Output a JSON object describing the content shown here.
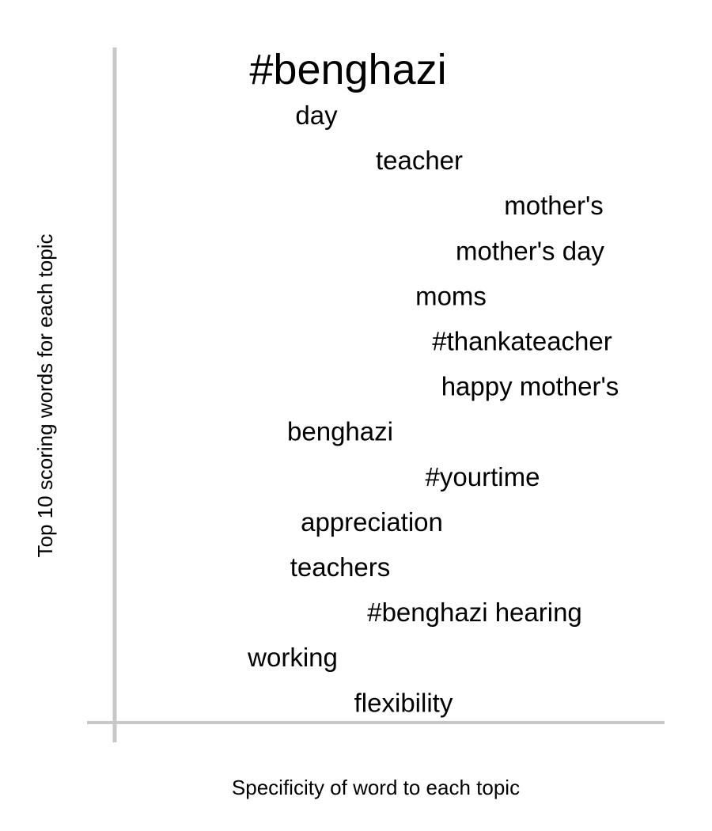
{
  "chart_data": {
    "type": "scatter",
    "title": "",
    "xlabel": "Specificity of word to each topic",
    "ylabel": "Top 10 scoring words for each topic",
    "grid": false,
    "legend": "none",
    "axis_color": "#c8c8c8",
    "text_color": "#000000",
    "points": [
      {
        "word": "#benghazi",
        "x": 0.44,
        "rank": 1,
        "weight": 1.0
      },
      {
        "word": "day",
        "x": 0.4,
        "rank": 2,
        "weight": 0.45
      },
      {
        "word": "teacher",
        "x": 0.53,
        "rank": 3,
        "weight": 0.45
      },
      {
        "word": "mother's",
        "x": 0.7,
        "rank": 4,
        "weight": 0.45
      },
      {
        "word": "mother's day",
        "x": 0.67,
        "rank": 5,
        "weight": 0.45
      },
      {
        "word": "moms",
        "x": 0.57,
        "rank": 6,
        "weight": 0.45
      },
      {
        "word": "#thankateacher",
        "x": 0.66,
        "rank": 7,
        "weight": 0.45
      },
      {
        "word": "happy mother's",
        "x": 0.67,
        "rank": 8,
        "weight": 0.45
      },
      {
        "word": "benghazi",
        "x": 0.43,
        "rank": 9,
        "weight": 0.45
      },
      {
        "word": "#yourtime",
        "x": 0.61,
        "rank": 10,
        "weight": 0.45
      },
      {
        "word": "appreciation",
        "x": 0.47,
        "rank": 11,
        "weight": 0.45
      },
      {
        "word": "teachers",
        "x": 0.43,
        "rank": 12,
        "weight": 0.45
      },
      {
        "word": "#benghazi hearing",
        "x": 0.6,
        "rank": 13,
        "weight": 0.45
      },
      {
        "word": "working",
        "x": 0.37,
        "rank": 14,
        "weight": 0.45
      },
      {
        "word": "flexibility",
        "x": 0.51,
        "rank": 15,
        "weight": 0.45
      }
    ]
  }
}
